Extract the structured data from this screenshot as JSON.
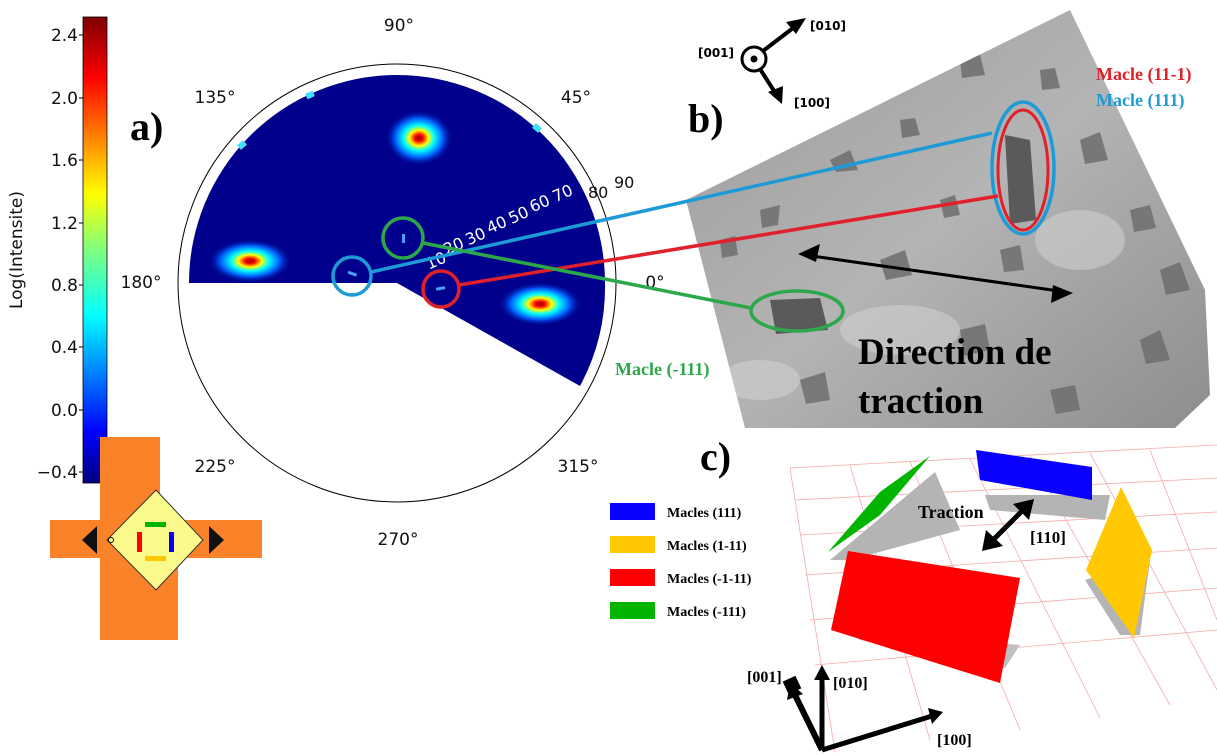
{
  "panel_labels": {
    "a": "a)",
    "b": "b)",
    "c": "c)"
  },
  "colorbar": {
    "label": "Log(Intensite)",
    "ticks": [
      "2.4",
      "2.0",
      "1.6",
      "1.2",
      "0.8",
      "0.4",
      "0.0",
      "−0.4"
    ]
  },
  "polar": {
    "angle_labels": {
      "a0": "0°",
      "a45": "45°",
      "a90": "90°",
      "a135": "135°",
      "a180": "180°",
      "a225": "225°",
      "a270": "270°",
      "a315": "315°"
    },
    "radial_labels": [
      "10",
      "20",
      "30",
      "40",
      "50",
      "60",
      "70",
      "80",
      "90"
    ]
  },
  "axes_b": {
    "x001": "[001]",
    "x010": "[010]",
    "x100": "[100]"
  },
  "twins_b": {
    "red": "Macle (11-1)",
    "blue": "Macle (111)",
    "green": "Macle (-111)"
  },
  "traction_b": {
    "line1": "Direction de",
    "line2": "traction"
  },
  "legend_c": [
    {
      "label": "Macles (111)",
      "color": "#0a00ff"
    },
    {
      "label": "Macles (1-11)",
      "color": "#ffc800"
    },
    {
      "label": "Macles (-1-11)",
      "color": "#ff0000"
    },
    {
      "label": "Macles (-111)",
      "color": "#00b400"
    }
  ],
  "traction_c": {
    "label": "Traction",
    "dir": "[110]"
  },
  "axes_c": {
    "x001": "[001]",
    "x010": "[010]",
    "x100": "[100]"
  },
  "colors": {
    "circle_blue": "#1e9bd7",
    "circle_red": "#e0202a",
    "circle_green": "#2ca84a",
    "sample_orange": "#fa8228",
    "sample_yellow": "#fafa8c",
    "pole_bg": "#00008c"
  }
}
